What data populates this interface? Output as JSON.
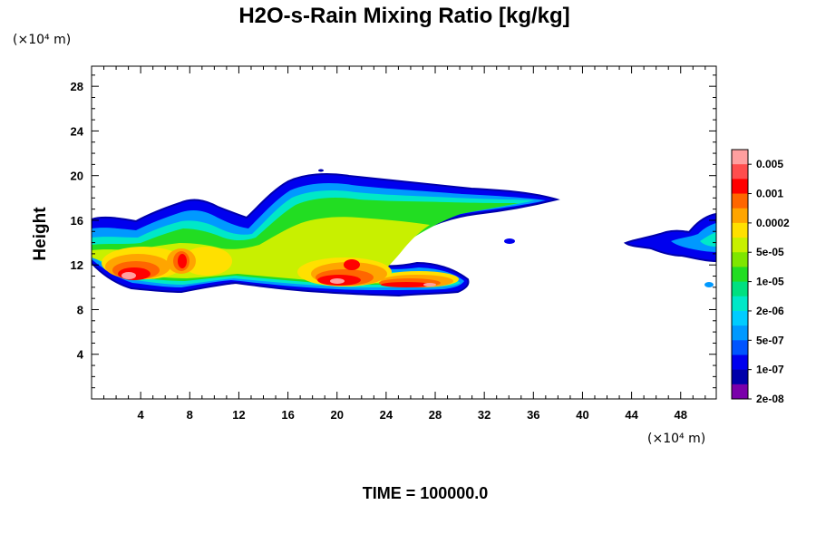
{
  "chart_data": {
    "type": "heatmap",
    "title": "H2O-s-Rain Mixing Ratio [kg/kg]",
    "ylabel": "Height",
    "y_unit_label": "(×10⁴ m)",
    "x_unit_label": "(×10⁴ m)",
    "xlim": [
      0,
      50.9
    ],
    "ylim": [
      0,
      29.8
    ],
    "x_ticks": [
      "4",
      "8",
      "12",
      "16",
      "20",
      "24",
      "28",
      "32",
      "36",
      "40",
      "44",
      "48"
    ],
    "x_tick_values": [
      4,
      8,
      12,
      16,
      20,
      24,
      28,
      32,
      36,
      40,
      44,
      48
    ],
    "y_ticks": [
      "4",
      "8",
      "12",
      "16",
      "20",
      "24",
      "28"
    ],
    "y_tick_values": [
      4,
      8,
      12,
      16,
      20,
      24,
      28
    ],
    "colorbar": {
      "labels": [
        "0.005",
        "0.001",
        "0.0002",
        "5e-05",
        "1e-05",
        "2e-06",
        "5e-07",
        "1e-07",
        "2e-08"
      ],
      "colors": [
        "#ff9f9f",
        "#ff4d4d",
        "#ff0000",
        "#ff6600",
        "#ffa500",
        "#ffe000",
        "#c8f000",
        "#7fe600",
        "#22dd22",
        "#00e080",
        "#00e8c8",
        "#00ccff",
        "#0099ff",
        "#0055ff",
        "#0000ee",
        "#0000aa",
        "#7a00aa"
      ]
    },
    "footer": "TIME = 100000.0"
  }
}
